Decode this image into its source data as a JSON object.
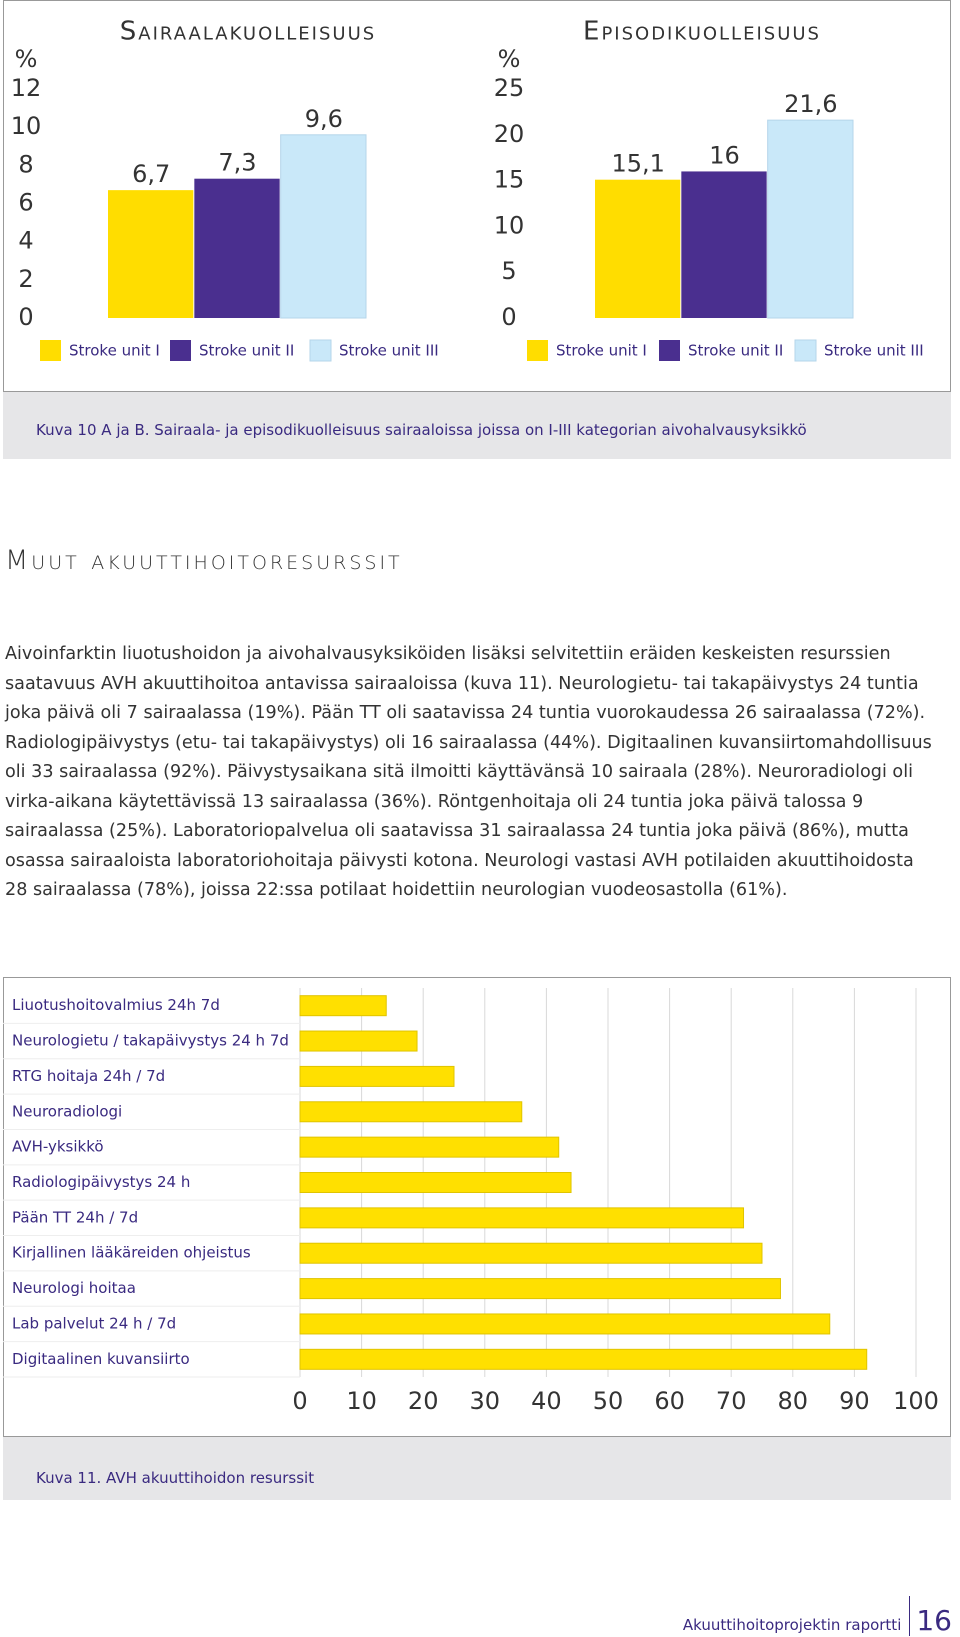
{
  "chart_data": [
    {
      "type": "bar",
      "title": "Sairaalakuolleisuus",
      "y_label": "%",
      "categories": [
        "Stroke unit I",
        "Stroke unit II",
        "Stroke unit III"
      ],
      "values": [
        6.7,
        7.3,
        9.6
      ],
      "value_labels": [
        "6,7",
        "7,3",
        "9,6"
      ],
      "colors": [
        "#ffdd00",
        "#4a2f8f",
        "#c9e8f9"
      ],
      "ylim": [
        0,
        12
      ],
      "yticks": [
        0,
        2,
        4,
        6,
        8,
        10,
        12
      ],
      "legend": "bottom"
    },
    {
      "type": "bar",
      "title": "Episodikuolleisuus",
      "y_label": "%",
      "categories": [
        "Stroke unit I",
        "Stroke unit II",
        "Stroke unit III"
      ],
      "values": [
        15.1,
        16,
        21.6
      ],
      "value_labels": [
        "15,1",
        "16",
        "21,6"
      ],
      "colors": [
        "#ffdd00",
        "#4a2f8f",
        "#c9e8f9"
      ],
      "ylim": [
        0,
        25
      ],
      "yticks": [
        0,
        5,
        10,
        15,
        20,
        25
      ],
      "legend": "bottom"
    },
    {
      "type": "barh",
      "categories": [
        "Liuotushoitovalmius 24h 7d",
        "Neurologietu / takapäivystys 24 h 7d",
        "RTG hoitaja 24h / 7d",
        "Neuroradiologi",
        "AVH-yksikkö",
        "Radiologipäivystys 24 h",
        "Pään TT 24h / 7d",
        "Kirjallinen lääkäreiden ohjeistus",
        "Neurologi hoitaa",
        "Lab palvelut 24 h / 7d",
        "Digitaalinen kuvansiirto"
      ],
      "values": [
        14,
        19,
        25,
        36,
        42,
        44,
        72,
        75,
        78,
        86,
        92
      ],
      "color": "#ffe000",
      "xlim": [
        0,
        100
      ],
      "xticks": [
        0,
        10,
        20,
        30,
        40,
        50,
        60,
        70,
        80,
        90,
        100
      ],
      "grid": true
    }
  ],
  "figure_captions": [
    "Kuva 10 A ja B. Sairaala- ja episodikuolleisuus sairaaloissa joissa on I-III kategorian aivohalvausyksikkö",
    "Kuva 11. AVH akuuttihoidon resurssit"
  ],
  "section_title": "Muut akuuttihoitoresurssit",
  "body_text": "Aivoinfarktin liuotushoidon ja aivohalvausyksiköiden lisäksi selvitettiin eräiden keskeisten resurssien saatavuus AVH akuuttihoitoa antavissa sairaaloissa (kuva 11). Neurologietu- tai takapäivystys 24 tuntia joka päivä oli 7 sairaalassa (19%). Pään TT oli saatavissa 24 tuntia vuorokaudessa 26 sairaalassa (72%). Radiologipäivystys (etu- tai takapäivystys) oli 16 sairaalassa (44%). Digitaalinen kuvansiirtomahdollisuus oli 33 sairaalassa (92%). Päivystysaikana sitä ilmoitti käyttävänsä 10 sairaala (28%). Neuroradiologi oli virka-aikana käytettävissä 13 sairaalassa (36%). Röntgenhoitaja oli 24 tuntia joka päivä talossa 9 sairaalassa (25%). Laboratoriopalvelua oli saatavissa 31 sairaalassa 24 tuntia joka päivä (86%), mutta osassa sairaaloista laboratoriohoitaja päivysti kotona. Neurologi vastasi AVH potilaiden akuuttihoidosta 28 sairaalassa (78%), joissa 22:ssa potilaat hoidettiin neurologian vuodeosastolla (61%).",
  "footer": {
    "text": "Akuuttihoitoprojektin raportti",
    "page": "16"
  }
}
